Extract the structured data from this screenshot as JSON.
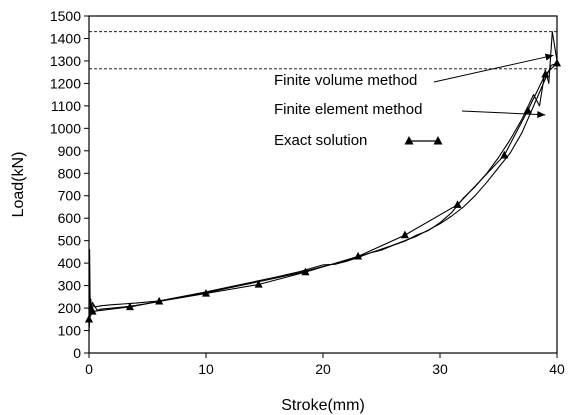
{
  "chart_data": {
    "type": "line",
    "xlabel": "Stroke(mm)",
    "ylabel": "Load(kN)",
    "xlim": [
      0,
      40
    ],
    "ylim": [
      0,
      1500
    ],
    "x_ticks": [
      0,
      10,
      20,
      30,
      40
    ],
    "y_ticks": [
      0,
      100,
      200,
      300,
      400,
      500,
      600,
      700,
      800,
      900,
      1000,
      1100,
      1200,
      1300,
      1400,
      1500
    ],
    "grid": false,
    "reference_lines": [
      {
        "y": 1430,
        "style": "dashed"
      },
      {
        "y": 1265,
        "style": "dashed"
      }
    ],
    "series": [
      {
        "name": "Exact solution",
        "marker": "triangle",
        "x": [
          0,
          0.3,
          3.5,
          6,
          10,
          14.5,
          18.5,
          23,
          27,
          31.5,
          35.5,
          37.5,
          39,
          40
        ],
        "y": [
          150,
          185,
          205,
          230,
          265,
          305,
          360,
          430,
          525,
          660,
          880,
          1080,
          1240,
          1290
        ]
      },
      {
        "name": "Finite element method",
        "marker": "none",
        "x": [
          0,
          0.05,
          0.1,
          0.2,
          0.4,
          0.7,
          1,
          2,
          3,
          4,
          5,
          6,
          8,
          10,
          12,
          14,
          16,
          18,
          20,
          22,
          24,
          26,
          28,
          30,
          31,
          32,
          33,
          34,
          35,
          36,
          37,
          37.5,
          38,
          38.5,
          39,
          39.5,
          40
        ],
        "y": [
          90,
          150,
          230,
          185,
          215,
          190,
          195,
          200,
          205,
          212,
          220,
          230,
          250,
          268,
          290,
          312,
          334,
          357,
          385,
          410,
          445,
          480,
          520,
          575,
          610,
          650,
          700,
          760,
          825,
          890,
          980,
          1040,
          1100,
          1160,
          1220,
          1280,
          1290
        ]
      },
      {
        "name": "Finite volume method",
        "marker": "none",
        "x": [
          0,
          0.05,
          0.1,
          0.15,
          0.2,
          0.3,
          0.5,
          1,
          2,
          4,
          6,
          8,
          10,
          12,
          14,
          16,
          18,
          20,
          21,
          22,
          23,
          24,
          25,
          26,
          27,
          28,
          29,
          30,
          31,
          32,
          33,
          34,
          35,
          36,
          37,
          38,
          38.5,
          39,
          39.3,
          39.6,
          40
        ],
        "y": [
          120,
          460,
          200,
          240,
          195,
          225,
          205,
          210,
          215,
          222,
          232,
          252,
          272,
          294,
          316,
          338,
          362,
          392,
          395,
          408,
          425,
          445,
          458,
          480,
          498,
          525,
          545,
          580,
          625,
          690,
          740,
          800,
          870,
          950,
          1040,
          1150,
          1100,
          1260,
          1200,
          1430,
          1300
        ]
      }
    ],
    "annotations": [
      {
        "text": "Finite volume method",
        "target_x": 39.7,
        "target_y": 1325
      },
      {
        "text": "Finite element method",
        "target_x": 39,
        "target_y": 1060
      },
      {
        "text": "Exact solution",
        "legend_marker": "triangle-line"
      }
    ]
  }
}
